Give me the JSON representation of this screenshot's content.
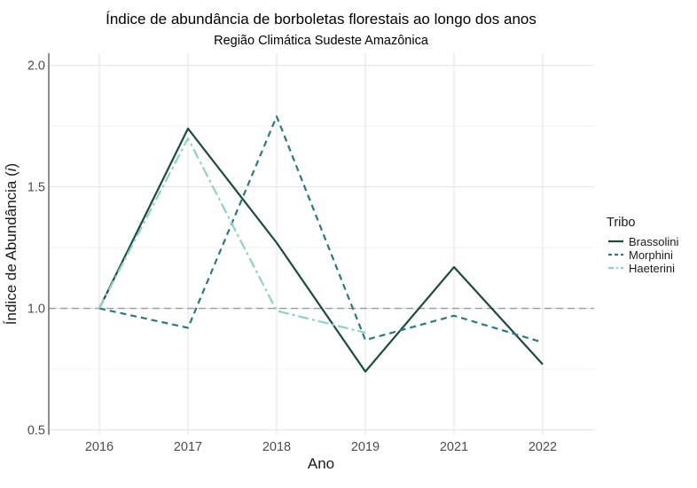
{
  "chart_data": {
    "type": "line",
    "title": "Índice de abundância de borboletas florestais ao longo dos anos",
    "subtitle": "Região Climática Sudeste Amazônica",
    "xlabel": "Ano",
    "ylabel": "Índice de Abundância (i)",
    "categories": [
      "2016",
      "2017",
      "2018",
      "2019",
      "2021",
      "2022"
    ],
    "ylim": [
      0.48,
      2.05
    ],
    "yticks": [
      "0.5",
      "1.0",
      "1.5",
      "2.0"
    ],
    "grid": true,
    "reference_line": 1.0,
    "legend": {
      "title": "Tribo",
      "position": "right"
    },
    "series": [
      {
        "name": "Brassolini",
        "color": "#1b4a3f",
        "dash": "solid",
        "values": [
          1.0,
          1.74,
          1.27,
          0.74,
          1.17,
          0.77
        ]
      },
      {
        "name": "Morphini",
        "color": "#2a7a7a",
        "dash": "dashed",
        "values": [
          1.0,
          0.92,
          1.79,
          0.87,
          0.97,
          0.86
        ]
      },
      {
        "name": "Haeterini",
        "color": "#8fd1c2",
        "dash": "dashdot",
        "values": [
          1.0,
          1.7,
          0.99,
          0.9,
          null,
          null
        ]
      }
    ]
  }
}
